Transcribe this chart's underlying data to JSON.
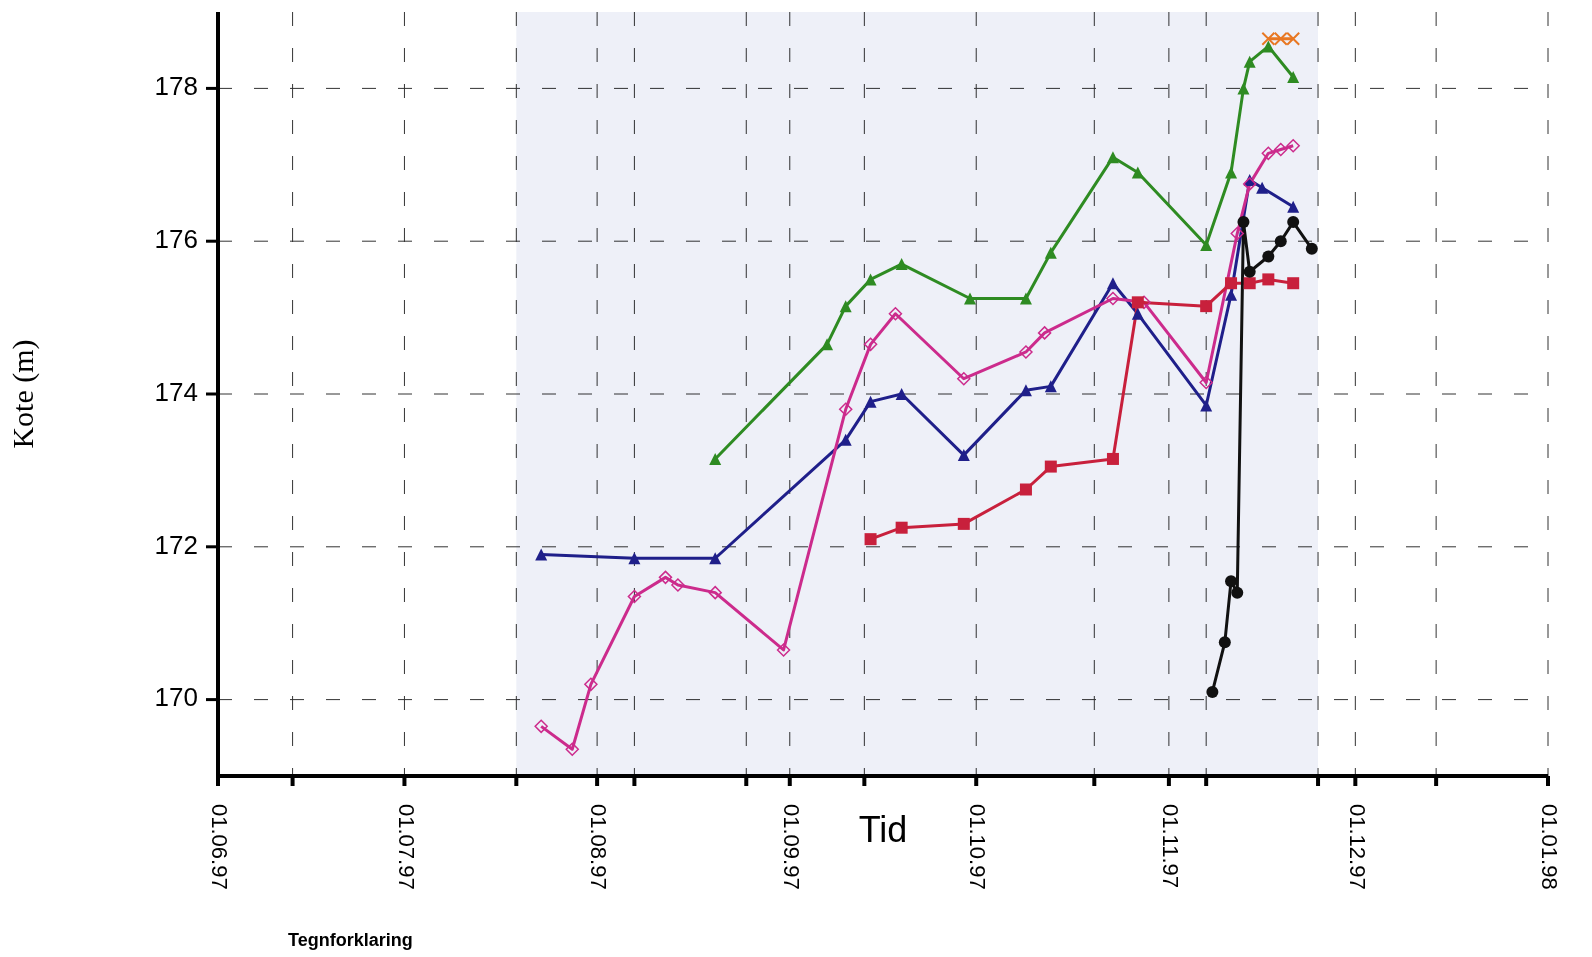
{
  "chart_data": {
    "type": "line",
    "xlabel": "Tid",
    "ylabel": "Kote (m)",
    "xlim": [
      "1997-06-01",
      "1998-01-01"
    ],
    "xticks": [
      {
        "value": "1997-06-01",
        "label": "01.06.97"
      },
      {
        "value": "1997-06-13",
        "label": null
      },
      {
        "value": "1997-07-01",
        "label": "01.07.97"
      },
      {
        "value": "1997-07-19",
        "label": null
      },
      {
        "value": "1997-08-01",
        "label": "01.08.97"
      },
      {
        "value": "1997-08-07",
        "label": null
      },
      {
        "value": "1997-08-25",
        "label": null
      },
      {
        "value": "1997-09-01",
        "label": "01.09.97"
      },
      {
        "value": "1997-09-13",
        "label": null
      },
      {
        "value": "1997-10-01",
        "label": "01.10.97"
      },
      {
        "value": "1997-10-20",
        "label": null
      },
      {
        "value": "1997-11-01",
        "label": "01.11.97"
      },
      {
        "value": "1997-11-07",
        "label": null
      },
      {
        "value": "1997-11-25",
        "label": null
      },
      {
        "value": "1997-12-01",
        "label": "01.12.97"
      },
      {
        "value": "1997-12-14",
        "label": null
      },
      {
        "value": "1998-01-01",
        "label": "01.01.98"
      }
    ],
    "ylim": [
      169,
      179
    ],
    "yticks": [
      170,
      172,
      174,
      176,
      178
    ],
    "grid": true,
    "line_style": "solid",
    "bands": [
      {
        "axis": "x",
        "from": "1997-07-19",
        "to": "1997-11-25",
        "color": "#eef0f8"
      }
    ],
    "annotations": [
      "Tegnforklaring"
    ],
    "series": [
      {
        "color": "#1f1f8a",
        "marker": "triangle",
        "x": [
          "1997-07-23",
          "1997-08-07",
          "1997-08-20",
          "1997-09-10",
          "1997-09-14",
          "1997-09-19",
          "1997-09-29",
          "1997-10-09",
          "1997-10-13",
          "1997-10-23",
          "1997-10-27",
          "1997-11-07",
          "1997-11-11",
          "1997-11-14",
          "1997-11-16",
          "1997-11-21"
        ],
        "values": [
          171.9,
          171.85,
          171.85,
          173.4,
          173.9,
          174.0,
          173.2,
          174.05,
          174.1,
          175.45,
          175.05,
          173.85,
          175.3,
          176.8,
          176.7,
          176.45
        ]
      },
      {
        "color": "#cc2b8c",
        "marker": "diamond",
        "x": [
          "1997-07-23",
          "1997-07-28",
          "1997-07-31",
          "1997-08-07",
          "1997-08-12",
          "1997-08-14",
          "1997-08-20",
          "1997-08-31",
          "1997-09-10",
          "1997-09-14",
          "1997-09-18",
          "1997-09-29",
          "1997-10-09",
          "1997-10-12",
          "1997-10-23",
          "1997-10-28",
          "1997-11-07",
          "1997-11-12",
          "1997-11-14",
          "1997-11-17",
          "1997-11-19",
          "1997-11-21"
        ],
        "values": [
          169.65,
          169.35,
          170.2,
          171.35,
          171.6,
          171.5,
          171.4,
          170.65,
          173.8,
          174.65,
          175.05,
          174.2,
          174.55,
          174.8,
          175.25,
          175.2,
          174.15,
          176.1,
          176.75,
          177.15,
          177.2,
          177.25
        ]
      },
      {
        "color": "#2e8b22",
        "marker": "triangle",
        "x": [
          "1997-08-20",
          "1997-09-07",
          "1997-09-10",
          "1997-09-14",
          "1997-09-19",
          "1997-09-30",
          "1997-10-09",
          "1997-10-13",
          "1997-10-23",
          "1997-10-27",
          "1997-11-07",
          "1997-11-11",
          "1997-11-13",
          "1997-11-14",
          "1997-11-17",
          "1997-11-21"
        ],
        "values": [
          173.15,
          174.65,
          175.15,
          175.5,
          175.7,
          175.25,
          175.25,
          175.85,
          177.1,
          176.9,
          175.95,
          176.9,
          178.0,
          178.35,
          178.55,
          178.15
        ]
      },
      {
        "color": "#c8203c",
        "marker": "square",
        "x": [
          "1997-09-14",
          "1997-09-19",
          "1997-09-29",
          "1997-10-09",
          "1997-10-13",
          "1997-10-23",
          "1997-10-27",
          "1997-11-07",
          "1997-11-11",
          "1997-11-14",
          "1997-11-17",
          "1997-11-21"
        ],
        "values": [
          172.1,
          172.25,
          172.3,
          172.75,
          173.05,
          173.15,
          175.2,
          175.15,
          175.45,
          175.45,
          175.5,
          175.45
        ]
      },
      {
        "color": "#111111",
        "marker": "circle",
        "x": [
          "1997-11-08",
          "1997-11-10",
          "1997-11-11",
          "1997-11-12",
          "1997-11-13",
          "1997-11-14",
          "1997-11-17",
          "1997-11-19",
          "1997-11-21",
          "1997-11-24"
        ],
        "values": [
          170.1,
          170.75,
          171.55,
          171.4,
          176.25,
          175.6,
          175.8,
          176.0,
          176.25,
          175.9
        ]
      },
      {
        "color": "#e87722",
        "marker": "cross",
        "x": [
          "1997-11-17",
          "1997-11-19",
          "1997-11-21"
        ],
        "values": [
          178.65,
          178.65,
          178.65
        ]
      }
    ]
  }
}
